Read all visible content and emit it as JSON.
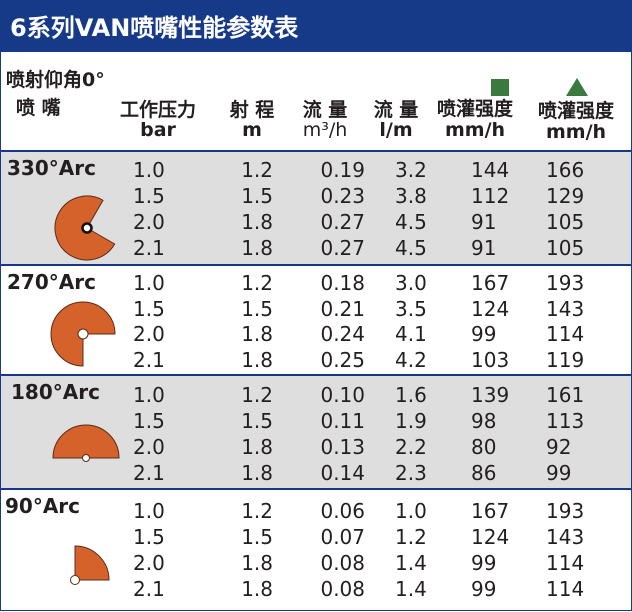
{
  "title": "6系列VAN喷嘴性能参数表",
  "header": {
    "trajectory": "喷射仰角0°",
    "nozzle": "喷 嘴",
    "pressure": "工作压力",
    "pressure_unit": "bar",
    "radius": "射 程",
    "radius_unit": "m",
    "flow_m3": "流 量",
    "flow_m3_unit": "m³/h",
    "flow_lm": "流 量",
    "flow_lm_unit": "l/m",
    "precip_square": "喷灌强度",
    "precip_square_unit": "mm/h",
    "precip_triangle": "喷灌强度",
    "precip_triangle_unit": "mm/h"
  },
  "legend": {
    "square_color": "#3a7a3f",
    "triangle_color": "#3a7a3f",
    "square_icon": "green-square-icon",
    "triangle_icon": "green-triangle-icon"
  },
  "colors": {
    "header_bg": "#163a87",
    "row_gray": "#dedede",
    "arc_fill": "#d4622a"
  },
  "sections": [
    {
      "arc": "330°Arc",
      "rows": [
        {
          "pressure": "1.0",
          "radius": "1.2",
          "flow_m3": "0.19",
          "flow_lm": "3.2",
          "precip_sq": "144",
          "precip_tri": "166"
        },
        {
          "pressure": "1.5",
          "radius": "1.5",
          "flow_m3": "0.23",
          "flow_lm": "3.8",
          "precip_sq": "112",
          "precip_tri": "129"
        },
        {
          "pressure": "2.0",
          "radius": "1.8",
          "flow_m3": "0.27",
          "flow_lm": "4.5",
          "precip_sq": "91",
          "precip_tri": "105"
        },
        {
          "pressure": "2.1",
          "radius": "1.8",
          "flow_m3": "0.27",
          "flow_lm": "4.5",
          "precip_sq": "91",
          "precip_tri": "105"
        }
      ]
    },
    {
      "arc": "270°Arc",
      "rows": [
        {
          "pressure": "1.0",
          "radius": "1.2",
          "flow_m3": "0.18",
          "flow_lm": "3.0",
          "precip_sq": "167",
          "precip_tri": "193"
        },
        {
          "pressure": "1.5",
          "radius": "1.5",
          "flow_m3": "0.21",
          "flow_lm": "3.5",
          "precip_sq": "124",
          "precip_tri": "143"
        },
        {
          "pressure": "2.0",
          "radius": "1.8",
          "flow_m3": "0.24",
          "flow_lm": "4.1",
          "precip_sq": "99",
          "precip_tri": "114"
        },
        {
          "pressure": "2.1",
          "radius": "1.8",
          "flow_m3": "0.25",
          "flow_lm": "4.2",
          "precip_sq": "103",
          "precip_tri": "119"
        }
      ]
    },
    {
      "arc": "180°Arc",
      "rows": [
        {
          "pressure": "1.0",
          "radius": "1.2",
          "flow_m3": "0.10",
          "flow_lm": "1.6",
          "precip_sq": "139",
          "precip_tri": "161"
        },
        {
          "pressure": "1.5",
          "radius": "1.5",
          "flow_m3": "0.11",
          "flow_lm": "1.9",
          "precip_sq": "98",
          "precip_tri": "113"
        },
        {
          "pressure": "2.0",
          "radius": "1.8",
          "flow_m3": "0.13",
          "flow_lm": "2.2",
          "precip_sq": "80",
          "precip_tri": "92"
        },
        {
          "pressure": "2.1",
          "radius": "1.8",
          "flow_m3": "0.14",
          "flow_lm": "2.3",
          "precip_sq": "86",
          "precip_tri": "99"
        }
      ]
    },
    {
      "arc": "90°Arc",
      "rows": [
        {
          "pressure": "1.0",
          "radius": "1.2",
          "flow_m3": "0.06",
          "flow_lm": "1.0",
          "precip_sq": "167",
          "precip_tri": "193"
        },
        {
          "pressure": "1.5",
          "radius": "1.5",
          "flow_m3": "0.07",
          "flow_lm": "1.2",
          "precip_sq": "124",
          "precip_tri": "143"
        },
        {
          "pressure": "2.0",
          "radius": "1.8",
          "flow_m3": "0.08",
          "flow_lm": "1.4",
          "precip_sq": "99",
          "precip_tri": "114"
        },
        {
          "pressure": "2.1",
          "radius": "1.8",
          "flow_m3": "0.08",
          "flow_lm": "1.4",
          "precip_sq": "99",
          "precip_tri": "114"
        }
      ]
    }
  ]
}
